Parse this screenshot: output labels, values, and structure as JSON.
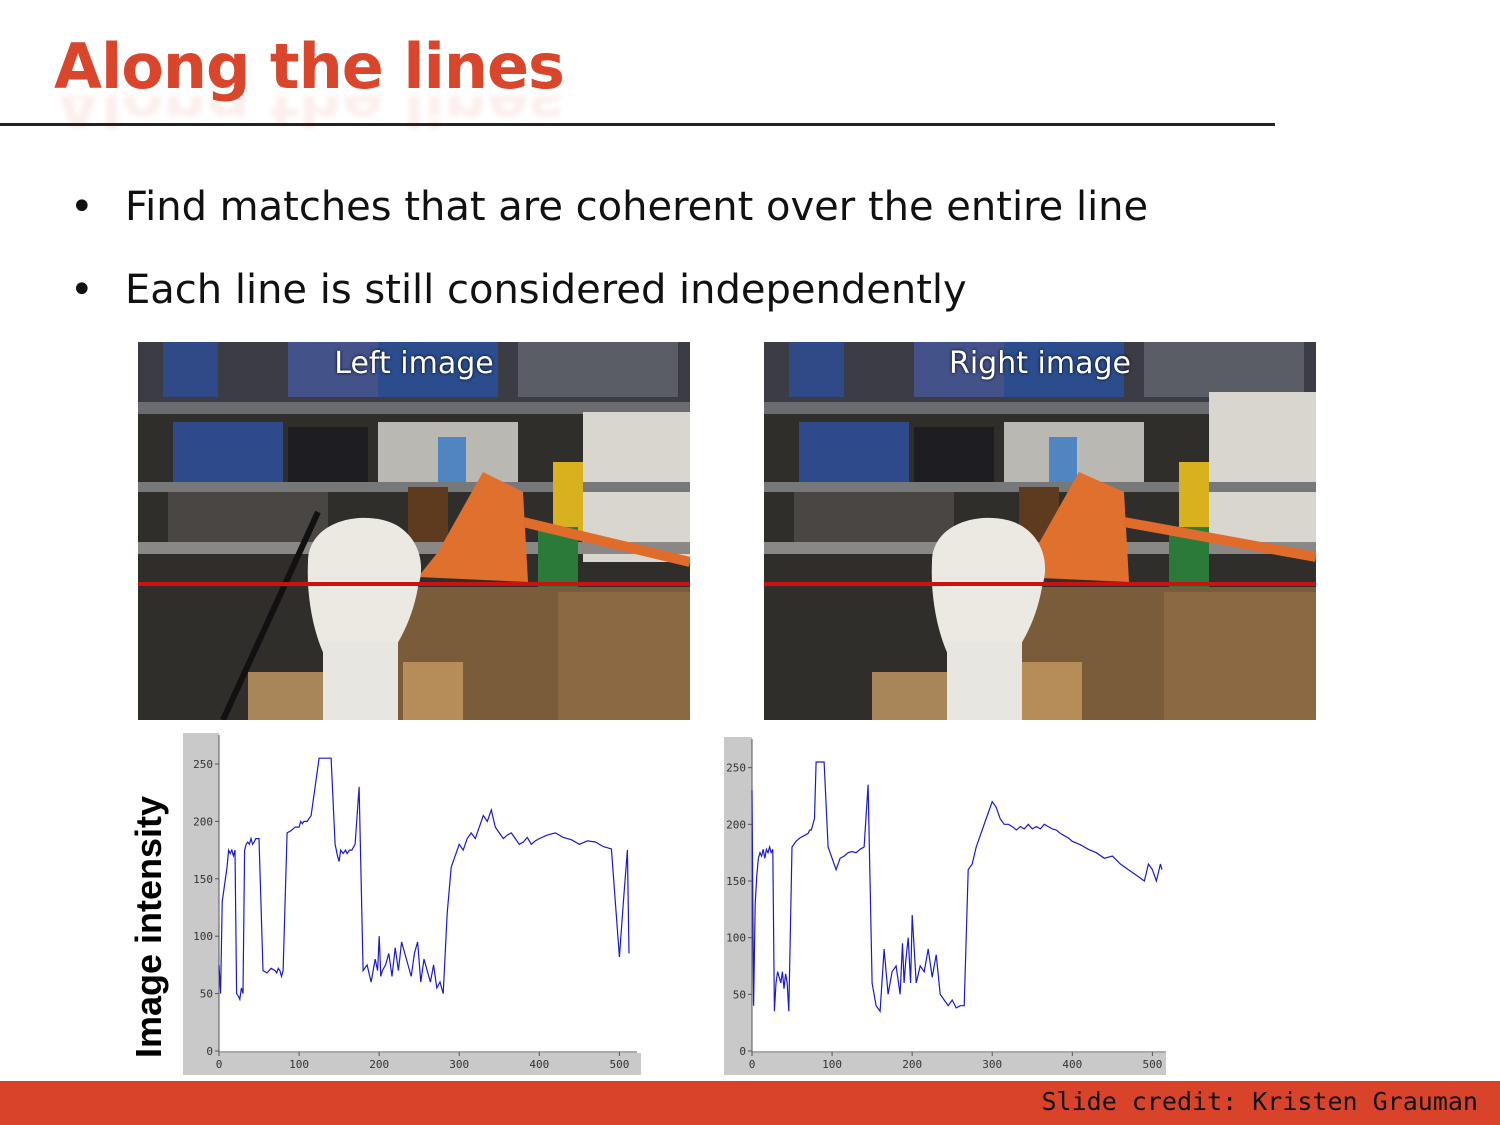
{
  "slide": {
    "title": "Along the lines",
    "bullets": [
      "Find matches that are coherent over the entire line",
      "Each line is still considered independently"
    ],
    "credit": "Slide credit: Kristen Grauman",
    "images": {
      "left_label": "Left image",
      "right_label": "Right image"
    },
    "ylabel": "Image intensity"
  },
  "colors": {
    "accent": "#d9462b",
    "line": "#1a1acc",
    "scanline": "#cc1111"
  },
  "chart_data": [
    {
      "type": "line",
      "title": "",
      "xlabel": "",
      "ylabel": "Image intensity",
      "xlim": [
        0,
        512
      ],
      "ylim": [
        0,
        270
      ],
      "xticks": [
        "0",
        "100",
        "200",
        "300",
        "400",
        "500"
      ],
      "yticks": [
        "0",
        "50",
        "100",
        "150",
        "200",
        "250"
      ],
      "series": [
        {
          "x": [
            0,
            2,
            4,
            6,
            8,
            10,
            12,
            14,
            16,
            18,
            20,
            22,
            24,
            26,
            28,
            30,
            32,
            34,
            36,
            38,
            40,
            42,
            44,
            46,
            50,
            55,
            60,
            65,
            70,
            72,
            74,
            76,
            78,
            80,
            85,
            90,
            95,
            100,
            102,
            104,
            106,
            110,
            115,
            120,
            125,
            130,
            135,
            140,
            145,
            148,
            150,
            152,
            155,
            158,
            160,
            163,
            166,
            170,
            175,
            180,
            185,
            190,
            195,
            198,
            200,
            202,
            204,
            208,
            212,
            216,
            220,
            224,
            228,
            232,
            236,
            240,
            244,
            248,
            252,
            256,
            260,
            264,
            268,
            272,
            276,
            280,
            285,
            290,
            295,
            300,
            305,
            310,
            315,
            320,
            325,
            330,
            335,
            340,
            345,
            350,
            355,
            360,
            365,
            370,
            375,
            380,
            385,
            390,
            395,
            400,
            410,
            420,
            430,
            440,
            450,
            460,
            470,
            480,
            490,
            500,
            505,
            510,
            512
          ],
          "y": [
            75,
            50,
            130,
            140,
            150,
            160,
            175,
            172,
            175,
            170,
            175,
            50,
            48,
            45,
            55,
            50,
            175,
            180,
            182,
            180,
            185,
            180,
            182,
            185,
            185,
            70,
            68,
            72,
            70,
            68,
            72,
            70,
            65,
            70,
            190,
            192,
            195,
            195,
            200,
            198,
            200,
            200,
            205,
            230,
            255,
            255,
            255,
            255,
            180,
            170,
            165,
            175,
            172,
            175,
            172,
            175,
            175,
            180,
            230,
            70,
            75,
            60,
            80,
            70,
            100,
            65,
            70,
            75,
            85,
            65,
            90,
            70,
            95,
            85,
            75,
            65,
            85,
            95,
            60,
            80,
            70,
            60,
            75,
            55,
            60,
            50,
            120,
            160,
            170,
            180,
            175,
            185,
            190,
            185,
            195,
            205,
            200,
            210,
            195,
            190,
            185,
            188,
            190,
            185,
            180,
            182,
            186,
            180,
            183,
            185,
            188,
            190,
            186,
            184,
            180,
            183,
            182,
            178,
            176,
            82,
            130,
            175,
            85
          ]
        }
      ]
    },
    {
      "type": "line",
      "title": "",
      "xlabel": "",
      "ylabel": "",
      "xlim": [
        0,
        512
      ],
      "ylim": [
        0,
        270
      ],
      "xticks": [
        "0",
        "100",
        "200",
        "300",
        "400",
        "500"
      ],
      "yticks": [
        "0",
        "50",
        "100",
        "150",
        "200",
        "250"
      ],
      "series": [
        {
          "x": [
            0,
            2,
            4,
            6,
            8,
            10,
            12,
            14,
            16,
            18,
            20,
            22,
            24,
            26,
            28,
            30,
            32,
            34,
            36,
            38,
            40,
            42,
            44,
            46,
            50,
            55,
            60,
            65,
            70,
            72,
            74,
            76,
            78,
            80,
            85,
            90,
            95,
            100,
            105,
            110,
            115,
            120,
            125,
            130,
            135,
            140,
            145,
            150,
            155,
            160,
            165,
            170,
            175,
            180,
            185,
            188,
            190,
            192,
            195,
            198,
            200,
            205,
            210,
            215,
            220,
            225,
            230,
            235,
            240,
            245,
            250,
            255,
            260,
            265,
            270,
            275,
            280,
            285,
            290,
            295,
            300,
            305,
            310,
            315,
            320,
            325,
            330,
            335,
            340,
            345,
            350,
            355,
            360,
            365,
            370,
            375,
            380,
            385,
            390,
            395,
            400,
            410,
            420,
            430,
            440,
            450,
            460,
            470,
            480,
            490,
            495,
            500,
            505,
            510,
            512
          ],
          "y": [
            230,
            40,
            130,
            155,
            170,
            175,
            172,
            178,
            170,
            178,
            175,
            180,
            175,
            178,
            35,
            60,
            70,
            65,
            60,
            70,
            55,
            68,
            60,
            35,
            180,
            185,
            188,
            190,
            192,
            195,
            195,
            200,
            205,
            255,
            255,
            255,
            180,
            170,
            160,
            170,
            172,
            175,
            176,
            175,
            178,
            180,
            235,
            60,
            40,
            35,
            90,
            50,
            70,
            75,
            50,
            95,
            60,
            80,
            100,
            60,
            120,
            60,
            75,
            70,
            90,
            65,
            85,
            50,
            45,
            40,
            45,
            38,
            40,
            40,
            160,
            165,
            180,
            190,
            200,
            210,
            220,
            215,
            205,
            200,
            200,
            198,
            195,
            198,
            196,
            200,
            196,
            198,
            196,
            200,
            198,
            196,
            195,
            192,
            190,
            188,
            185,
            182,
            178,
            175,
            170,
            172,
            165,
            160,
            155,
            150,
            165,
            160,
            150,
            165,
            160
          ]
        }
      ]
    }
  ]
}
